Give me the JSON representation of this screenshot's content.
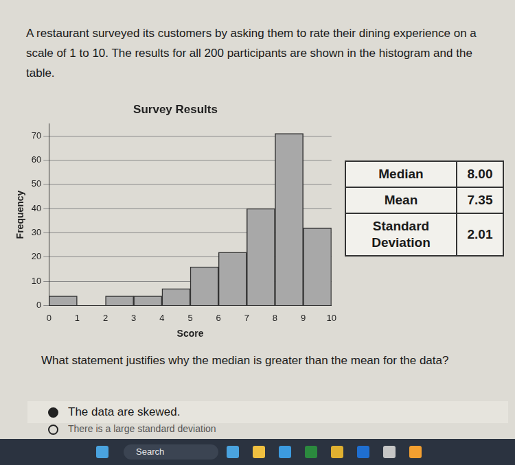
{
  "intro": "A restaurant surveyed its customers by asking them to rate their dining experience on a scale of 1 to 10. The results for all 200 participants are shown in the histogram and the table.",
  "chart_data": {
    "type": "histogram",
    "title": "Survey Results",
    "x_label": "Score",
    "y_label": "Frequency",
    "bins": [
      0,
      1,
      2,
      3,
      4,
      5,
      6,
      7,
      8,
      9,
      10
    ],
    "values": [
      4,
      0,
      4,
      4,
      7,
      16,
      22,
      40,
      71,
      32
    ],
    "color": "#a8a8a8",
    "xlim": [
      0,
      10
    ],
    "xticks": [
      0,
      1,
      2,
      3,
      4,
      5,
      6,
      7,
      8,
      9,
      10
    ],
    "ylim": [
      0,
      75
    ],
    "yticks": [
      0,
      10,
      20,
      30,
      40,
      50,
      60,
      70
    ],
    "grid": true
  },
  "table": {
    "rows": [
      [
        "Median",
        "8.00"
      ],
      [
        "Mean",
        "7.35"
      ],
      [
        "Standard Deviation",
        "2.01"
      ]
    ]
  },
  "question": "What statement justifies why the median is greater than the mean for the data?",
  "options": [
    "The data are skewed.",
    "There is a large standard deviation"
  ],
  "taskbar": {
    "search": "Search"
  }
}
